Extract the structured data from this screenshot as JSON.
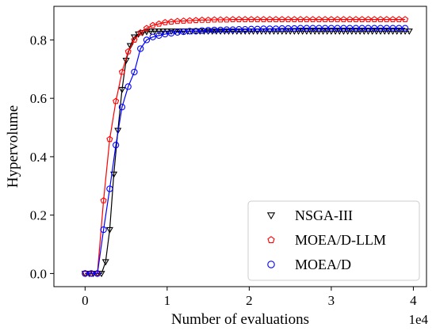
{
  "chart_data": {
    "type": "line",
    "xlabel": "Number of evaluations",
    "ylabel": "Hypervolume",
    "x_scale_label": "1e4",
    "xlim": [
      -0.38,
      4.16
    ],
    "ylim": [
      -0.045,
      0.915
    ],
    "x_ticks": [
      0,
      1,
      2,
      3,
      4
    ],
    "x_tick_labels": [
      "0",
      "1",
      "2",
      "3",
      "4"
    ],
    "y_ticks": [
      0.0,
      0.2,
      0.4,
      0.6,
      0.8
    ],
    "y_tick_labels": [
      "0.0",
      "0.2",
      "0.4",
      "0.6",
      "0.8"
    ],
    "grid": false,
    "legend_position": "bottom-right",
    "series": [
      {
        "name": "NSGA-III",
        "color": "#000000",
        "marker": "triangle-down",
        "x": [
          0.0,
          0.05,
          0.1,
          0.15,
          0.2,
          0.25,
          0.3,
          0.35,
          0.4,
          0.45,
          0.5,
          0.55,
          0.6,
          0.65,
          0.7,
          0.75,
          0.8,
          0.85,
          0.9,
          0.95,
          1.0,
          1.05,
          1.1,
          1.15,
          1.2,
          1.25,
          1.3,
          1.35,
          1.4,
          1.45,
          1.5,
          1.55,
          1.6,
          1.65,
          1.7,
          1.75,
          1.8,
          1.85,
          1.9,
          1.95,
          2.0,
          2.05,
          2.1,
          2.15,
          2.2,
          2.25,
          2.3,
          2.35,
          2.4,
          2.45,
          2.5,
          2.55,
          2.6,
          2.65,
          2.7,
          2.75,
          2.8,
          2.85,
          2.9,
          2.95,
          3.0,
          3.05,
          3.1,
          3.15,
          3.2,
          3.25,
          3.3,
          3.35,
          3.4,
          3.45,
          3.5,
          3.55,
          3.6,
          3.65,
          3.7,
          3.75,
          3.8,
          3.85,
          3.9,
          3.95
        ],
        "y": [
          0.0,
          0.0,
          0.0,
          0.0,
          0.0,
          0.04,
          0.15,
          0.34,
          0.49,
          0.63,
          0.73,
          0.78,
          0.81,
          0.82,
          0.825,
          0.828,
          0.83,
          0.83,
          0.83,
          0.83,
          0.83,
          0.83,
          0.83,
          0.83,
          0.83,
          0.83,
          0.83,
          0.83,
          0.83,
          0.83,
          0.83,
          0.83,
          0.83,
          0.83,
          0.83,
          0.83,
          0.83,
          0.83,
          0.83,
          0.83,
          0.83,
          0.83,
          0.83,
          0.83,
          0.83,
          0.83,
          0.83,
          0.83,
          0.83,
          0.83,
          0.83,
          0.83,
          0.83,
          0.83,
          0.83,
          0.83,
          0.83,
          0.83,
          0.83,
          0.83,
          0.83,
          0.83,
          0.83,
          0.83,
          0.83,
          0.83,
          0.83,
          0.83,
          0.83,
          0.83,
          0.83,
          0.83,
          0.83,
          0.83,
          0.83,
          0.83,
          0.83,
          0.83,
          0.83,
          0.83
        ]
      },
      {
        "name": "MOEA/D-LLM",
        "color": "#ff0000",
        "marker": "pentagon",
        "x": [
          0.0,
          0.075,
          0.15,
          0.225,
          0.3,
          0.375,
          0.45,
          0.525,
          0.6,
          0.675,
          0.75,
          0.825,
          0.9,
          0.975,
          1.05,
          1.125,
          1.2,
          1.275,
          1.35,
          1.425,
          1.5,
          1.575,
          1.65,
          1.725,
          1.8,
          1.875,
          1.95,
          2.025,
          2.1,
          2.175,
          2.25,
          2.325,
          2.4,
          2.475,
          2.55,
          2.625,
          2.7,
          2.775,
          2.85,
          2.925,
          3.0,
          3.075,
          3.15,
          3.225,
          3.3,
          3.375,
          3.45,
          3.525,
          3.6,
          3.675,
          3.75,
          3.825,
          3.9
        ],
        "y": [
          0.0,
          0.0,
          0.0,
          0.25,
          0.46,
          0.59,
          0.69,
          0.76,
          0.8,
          0.825,
          0.84,
          0.85,
          0.855,
          0.86,
          0.862,
          0.864,
          0.865,
          0.866,
          0.867,
          0.868,
          0.868,
          0.869,
          0.869,
          0.869,
          0.87,
          0.87,
          0.87,
          0.87,
          0.87,
          0.87,
          0.87,
          0.87,
          0.87,
          0.87,
          0.87,
          0.87,
          0.87,
          0.87,
          0.87,
          0.87,
          0.87,
          0.87,
          0.87,
          0.87,
          0.87,
          0.87,
          0.87,
          0.87,
          0.87,
          0.87,
          0.87,
          0.87,
          0.87
        ]
      },
      {
        "name": "MOEA/D",
        "color": "#0000ff",
        "marker": "circle",
        "x": [
          0.0,
          0.075,
          0.15,
          0.225,
          0.3,
          0.375,
          0.45,
          0.525,
          0.6,
          0.675,
          0.75,
          0.825,
          0.9,
          0.975,
          1.05,
          1.125,
          1.2,
          1.275,
          1.35,
          1.425,
          1.5,
          1.575,
          1.65,
          1.725,
          1.8,
          1.875,
          1.95,
          2.025,
          2.1,
          2.175,
          2.25,
          2.325,
          2.4,
          2.475,
          2.55,
          2.625,
          2.7,
          2.775,
          2.85,
          2.925,
          3.0,
          3.075,
          3.15,
          3.225,
          3.3,
          3.375,
          3.45,
          3.525,
          3.6,
          3.675,
          3.75,
          3.825,
          3.9
        ],
        "y": [
          0.0,
          0.0,
          0.0,
          0.15,
          0.29,
          0.44,
          0.57,
          0.64,
          0.69,
          0.77,
          0.8,
          0.81,
          0.815,
          0.82,
          0.823,
          0.826,
          0.828,
          0.83,
          0.83,
          0.832,
          0.833,
          0.834,
          0.834,
          0.835,
          0.835,
          0.836,
          0.836,
          0.837,
          0.837,
          0.838,
          0.838,
          0.838,
          0.839,
          0.839,
          0.839,
          0.84,
          0.84,
          0.84,
          0.84,
          0.84,
          0.84,
          0.84,
          0.84,
          0.84,
          0.84,
          0.84,
          0.84,
          0.84,
          0.84,
          0.84,
          0.84,
          0.84,
          0.84
        ]
      }
    ]
  }
}
